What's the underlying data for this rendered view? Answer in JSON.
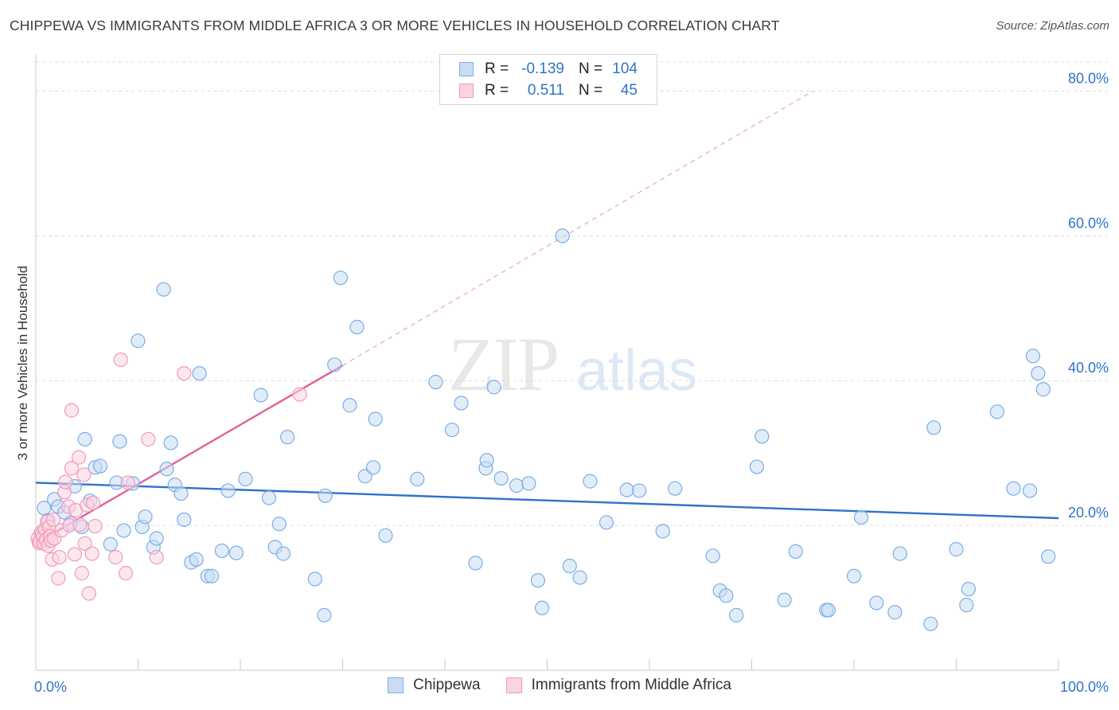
{
  "chart_data": {
    "type": "scatter",
    "title": "CHIPPEWA VS IMMIGRANTS FROM MIDDLE AFRICA 3 OR MORE VEHICLES IN HOUSEHOLD CORRELATION CHART",
    "source": "Source: ZipAtlas.com",
    "ylabel": "3 or more Vehicles in Household",
    "xlabel": "",
    "xlim": [
      0,
      100
    ],
    "ylim": [
      0,
      84
    ],
    "x_tick_labels": [
      "0.0%",
      "100.0%"
    ],
    "y_ticks": [
      20,
      40,
      60,
      80
    ],
    "y_tick_labels": [
      "20.0%",
      "40.0%",
      "60.0%",
      "80.0%"
    ],
    "watermark": "ZIPatlas",
    "legend": [
      {
        "name": "Chippewa",
        "r_label": "R =",
        "r": "-0.139",
        "n_label": "N =",
        "n": "104",
        "color": "#7baee6"
      },
      {
        "name": "Immigrants from Middle Africa",
        "r_label": "R =",
        "r": "0.511",
        "n_label": "N =",
        "n": "45",
        "color": "#f29ab8"
      }
    ],
    "series": [
      {
        "name": "Chippewa",
        "color": "#7baee6",
        "trend": {
          "x": [
            0,
            100
          ],
          "y": [
            25.9,
            21.0
          ],
          "color": "#2e72c8"
        },
        "points": [
          [
            0.8,
            22.4
          ],
          [
            1.2,
            20.7
          ],
          [
            1.8,
            23.6
          ],
          [
            2.2,
            22.6
          ],
          [
            2.8,
            21.8
          ],
          [
            3.4,
            20.3
          ],
          [
            3.8,
            25.4
          ],
          [
            4.5,
            19.8
          ],
          [
            4.8,
            31.9
          ],
          [
            5.3,
            23.4
          ],
          [
            5.8,
            28.0
          ],
          [
            6.3,
            28.2
          ],
          [
            7.3,
            17.4
          ],
          [
            7.9,
            25.9
          ],
          [
            8.2,
            31.6
          ],
          [
            8.6,
            19.3
          ],
          [
            9.5,
            25.8
          ],
          [
            10.0,
            45.5
          ],
          [
            10.4,
            19.8
          ],
          [
            10.7,
            21.2
          ],
          [
            11.5,
            17.0
          ],
          [
            11.8,
            18.2
          ],
          [
            12.5,
            52.6
          ],
          [
            12.8,
            27.8
          ],
          [
            13.2,
            31.4
          ],
          [
            13.6,
            25.6
          ],
          [
            14.2,
            24.4
          ],
          [
            14.5,
            20.8
          ],
          [
            15.2,
            14.9
          ],
          [
            15.7,
            15.3
          ],
          [
            16.0,
            41.0
          ],
          [
            16.8,
            13.0
          ],
          [
            17.2,
            13.0
          ],
          [
            18.2,
            16.5
          ],
          [
            18.8,
            24.8
          ],
          [
            19.6,
            16.2
          ],
          [
            20.5,
            26.4
          ],
          [
            22.0,
            38.0
          ],
          [
            22.8,
            23.8
          ],
          [
            23.4,
            17.0
          ],
          [
            23.8,
            20.2
          ],
          [
            24.2,
            16.1
          ],
          [
            24.6,
            32.2
          ],
          [
            27.3,
            12.6
          ],
          [
            28.2,
            7.6
          ],
          [
            28.3,
            24.1
          ],
          [
            29.2,
            42.2
          ],
          [
            29.8,
            54.2
          ],
          [
            30.7,
            36.6
          ],
          [
            31.4,
            47.4
          ],
          [
            32.2,
            26.8
          ],
          [
            33.0,
            28.0
          ],
          [
            33.2,
            34.7
          ],
          [
            34.2,
            18.6
          ],
          [
            37.3,
            26.4
          ],
          [
            39.1,
            39.8
          ],
          [
            40.7,
            33.2
          ],
          [
            41.6,
            36.9
          ],
          [
            43.0,
            14.8
          ],
          [
            44.0,
            27.9
          ],
          [
            44.1,
            29.0
          ],
          [
            44.8,
            39.1
          ],
          [
            45.5,
            26.5
          ],
          [
            47.0,
            25.5
          ],
          [
            48.2,
            25.8
          ],
          [
            49.1,
            12.4
          ],
          [
            49.5,
            8.6
          ],
          [
            51.5,
            60.0
          ],
          [
            52.2,
            14.4
          ],
          [
            53.2,
            12.8
          ],
          [
            54.2,
            26.1
          ],
          [
            55.8,
            20.4
          ],
          [
            57.8,
            24.9
          ],
          [
            59.0,
            24.8
          ],
          [
            61.3,
            19.2
          ],
          [
            62.5,
            25.1
          ],
          [
            66.2,
            15.8
          ],
          [
            66.9,
            11.0
          ],
          [
            67.5,
            10.3
          ],
          [
            68.5,
            7.6
          ],
          [
            70.5,
            28.1
          ],
          [
            71.0,
            32.3
          ],
          [
            73.2,
            9.7
          ],
          [
            74.3,
            16.4
          ],
          [
            77.3,
            8.3
          ],
          [
            77.5,
            8.3
          ],
          [
            80.0,
            13.0
          ],
          [
            80.7,
            21.1
          ],
          [
            82.2,
            9.3
          ],
          [
            84.0,
            8.0
          ],
          [
            84.5,
            16.1
          ],
          [
            87.5,
            6.4
          ],
          [
            87.8,
            33.5
          ],
          [
            90.0,
            16.7
          ],
          [
            91.0,
            9.0
          ],
          [
            91.2,
            11.2
          ],
          [
            94.0,
            35.7
          ],
          [
            95.6,
            25.1
          ],
          [
            97.2,
            24.8
          ],
          [
            97.5,
            43.4
          ],
          [
            98.0,
            41.0
          ],
          [
            98.5,
            38.8
          ],
          [
            99.0,
            15.7
          ]
        ]
      },
      {
        "name": "Immigrants from Middle Africa",
        "color": "#f29ab8",
        "trend": {
          "x": [
            0,
            30
          ],
          "y": [
            17.5,
            42.1
          ],
          "color": "#e0609a"
        },
        "trend_extension": {
          "x": [
            30,
            76
          ],
          "y": [
            42.1,
            80
          ]
        },
        "points": [
          [
            0.2,
            18.2
          ],
          [
            0.3,
            17.6
          ],
          [
            0.4,
            17.8
          ],
          [
            0.5,
            19.0
          ],
          [
            0.6,
            18.8
          ],
          [
            0.7,
            18.4
          ],
          [
            0.8,
            17.5
          ],
          [
            0.9,
            19.5
          ],
          [
            1.0,
            18.0
          ],
          [
            1.1,
            20.5
          ],
          [
            1.2,
            17.2
          ],
          [
            1.3,
            19.8
          ],
          [
            1.4,
            18.5
          ],
          [
            1.5,
            17.9
          ],
          [
            1.6,
            15.3
          ],
          [
            1.7,
            20.8
          ],
          [
            1.8,
            18.2
          ],
          [
            2.2,
            12.7
          ],
          [
            2.3,
            15.6
          ],
          [
            2.5,
            19.3
          ],
          [
            2.8,
            24.6
          ],
          [
            2.9,
            26.0
          ],
          [
            3.2,
            22.6
          ],
          [
            3.3,
            20.0
          ],
          [
            3.5,
            27.9
          ],
          [
            3.5,
            35.9
          ],
          [
            3.8,
            16.0
          ],
          [
            3.9,
            22.1
          ],
          [
            4.2,
            29.4
          ],
          [
            4.3,
            20.1
          ],
          [
            4.5,
            13.4
          ],
          [
            4.7,
            27.0
          ],
          [
            4.8,
            17.5
          ],
          [
            5.0,
            22.8
          ],
          [
            5.2,
            10.6
          ],
          [
            5.5,
            16.1
          ],
          [
            5.6,
            23.1
          ],
          [
            5.8,
            19.9
          ],
          [
            7.8,
            15.6
          ],
          [
            8.3,
            42.9
          ],
          [
            8.8,
            13.4
          ],
          [
            9.0,
            25.9
          ],
          [
            11.0,
            31.9
          ],
          [
            11.8,
            15.6
          ],
          [
            14.5,
            41.0
          ],
          [
            25.8,
            38.1
          ]
        ]
      }
    ]
  }
}
